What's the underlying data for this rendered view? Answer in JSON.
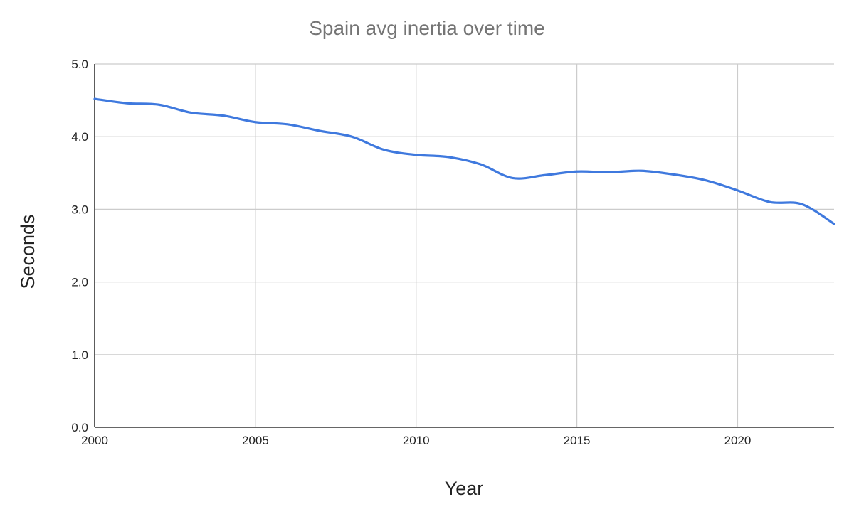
{
  "chart_data": {
    "type": "line",
    "title": "Spain avg inertia over time",
    "xlabel": "Year",
    "ylabel": "Seconds",
    "xlim": [
      2000,
      2023
    ],
    "ylim": [
      0,
      5
    ],
    "x_ticks": [
      "2000",
      "2005",
      "2010",
      "2015",
      "2020"
    ],
    "y_ticks": [
      "0.0",
      "1.0",
      "2.0",
      "3.0",
      "4.0",
      "5.0"
    ],
    "grid": true,
    "legend": "none",
    "series": [
      {
        "color": "#3f79de",
        "x": [
          2000,
          2001,
          2002,
          2003,
          2004,
          2005,
          2006,
          2007,
          2008,
          2009,
          2010,
          2011,
          2012,
          2013,
          2014,
          2015,
          2016,
          2017,
          2018,
          2019,
          2020,
          2021,
          2022,
          2023
        ],
        "y": [
          4.52,
          4.46,
          4.44,
          4.33,
          4.29,
          4.2,
          4.17,
          4.08,
          4.0,
          3.82,
          3.75,
          3.72,
          3.62,
          3.43,
          3.47,
          3.52,
          3.51,
          3.53,
          3.48,
          3.4,
          3.26,
          3.1,
          3.07,
          2.8
        ]
      }
    ]
  }
}
